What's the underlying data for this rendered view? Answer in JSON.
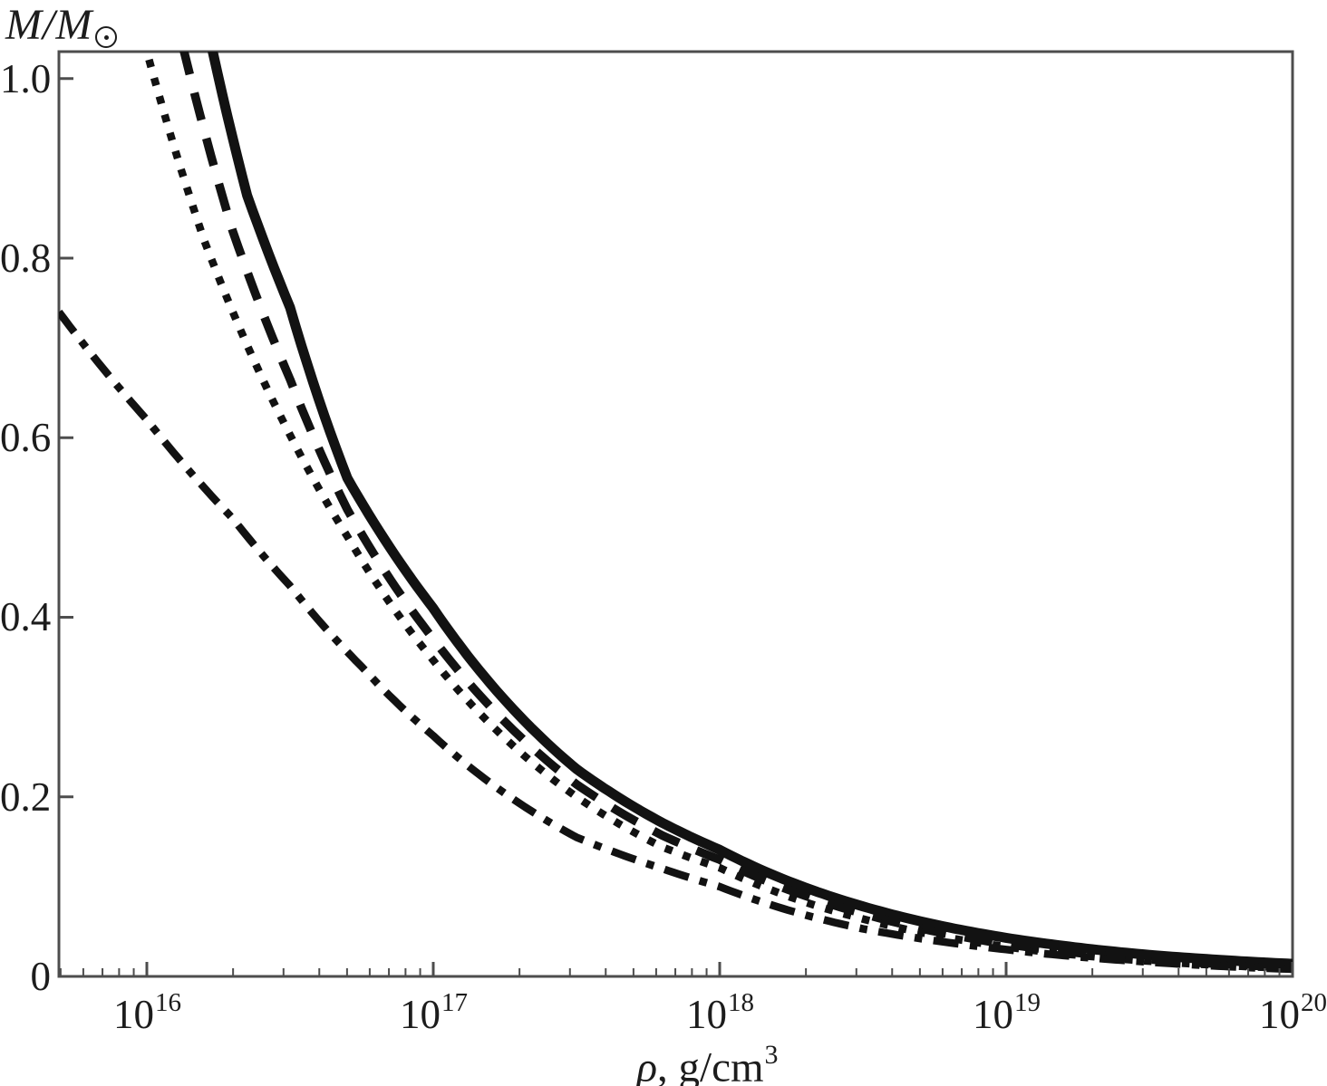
{
  "figure": {
    "background": "#ffffff",
    "frame_color": "#4d4d4d",
    "curve_color": "#121212",
    "text_color": "#1c1c1c"
  },
  "labels": {
    "y_title_main": "M/M",
    "y_title_sub_symbol": "sun-circle-dot",
    "x_title_rho": "ρ",
    "x_title_rest": ", g/cm",
    "x_title_sup": "3"
  },
  "chart_data": {
    "type": "line",
    "title": "",
    "xlabel": "rho, g/cm^3",
    "ylabel": "M/M_sun",
    "legend": "none",
    "grid": false,
    "x_axis": {
      "scale": "log10",
      "min_log": 15.693,
      "max_log": 20.0,
      "major_ticks": [
        {
          "base": "10",
          "exp": "16",
          "log": 16
        },
        {
          "base": "10",
          "exp": "17",
          "log": 17
        },
        {
          "base": "10",
          "exp": "18",
          "log": 18
        },
        {
          "base": "10",
          "exp": "19",
          "log": 19
        },
        {
          "base": "10",
          "exp": "20",
          "log": 20
        }
      ],
      "minor_tick_mantissas": [
        2,
        3,
        4,
        5,
        6,
        7,
        8,
        9
      ]
    },
    "y_axis": {
      "min": 0,
      "max": 1.03,
      "ticks": [
        {
          "label": "1.0",
          "value": 1.0
        },
        {
          "label": "0.8",
          "value": 0.8
        },
        {
          "label": "0.6",
          "value": 0.6
        },
        {
          "label": "0.4",
          "value": 0.4
        },
        {
          "label": "0.2",
          "value": 0.2
        },
        {
          "label": "0",
          "value": 0.0
        }
      ]
    },
    "series": [
      {
        "name": "curve-solid",
        "style": "solid",
        "points_log10rho_vs_M": [
          [
            16.1,
            1.4
          ],
          [
            16.23,
            1.03
          ],
          [
            16.35,
            0.87
          ],
          [
            16.5,
            0.745
          ],
          [
            16.7,
            0.555
          ],
          [
            17.0,
            0.41
          ],
          [
            17.5,
            0.231
          ],
          [
            17.8,
            0.171
          ],
          [
            18.0,
            0.141
          ],
          [
            18.5,
            0.078
          ],
          [
            19.0,
            0.043
          ],
          [
            19.5,
            0.024
          ],
          [
            20.0,
            0.014
          ]
        ]
      },
      {
        "name": "curve-dashed",
        "style": "dashed",
        "points_log10rho_vs_M": [
          [
            16.0,
            1.4
          ],
          [
            16.13,
            1.03
          ],
          [
            16.3,
            0.83
          ],
          [
            16.5,
            0.665
          ],
          [
            16.7,
            0.52
          ],
          [
            17.0,
            0.376
          ],
          [
            17.5,
            0.214
          ],
          [
            17.8,
            0.157
          ],
          [
            18.0,
            0.13
          ],
          [
            18.5,
            0.07
          ],
          [
            19.0,
            0.036
          ],
          [
            19.5,
            0.019
          ],
          [
            20.0,
            0.01
          ]
        ]
      },
      {
        "name": "curve-dotted",
        "style": "dotted",
        "points_log10rho_vs_M": [
          [
            15.88,
            1.4
          ],
          [
            16.0,
            1.03
          ],
          [
            16.2,
            0.82
          ],
          [
            16.5,
            0.603
          ],
          [
            16.7,
            0.49
          ],
          [
            17.0,
            0.352
          ],
          [
            17.5,
            0.2
          ],
          [
            17.8,
            0.144
          ],
          [
            18.0,
            0.121
          ],
          [
            18.5,
            0.064
          ],
          [
            19.0,
            0.033
          ],
          [
            19.5,
            0.017
          ],
          [
            20.0,
            0.009
          ]
        ]
      },
      {
        "name": "curve-dashdot",
        "style": "dashdot",
        "points_log10rho_vs_M": [
          [
            15.693,
            0.74
          ],
          [
            16.0,
            0.62
          ],
          [
            16.3,
            0.51
          ],
          [
            16.5,
            0.435
          ],
          [
            16.75,
            0.345
          ],
          [
            17.0,
            0.268
          ],
          [
            17.5,
            0.155
          ],
          [
            17.8,
            0.12
          ],
          [
            18.0,
            0.1
          ],
          [
            18.5,
            0.053
          ],
          [
            19.0,
            0.03
          ],
          [
            19.5,
            0.016
          ],
          [
            20.0,
            0.008
          ]
        ]
      }
    ]
  }
}
